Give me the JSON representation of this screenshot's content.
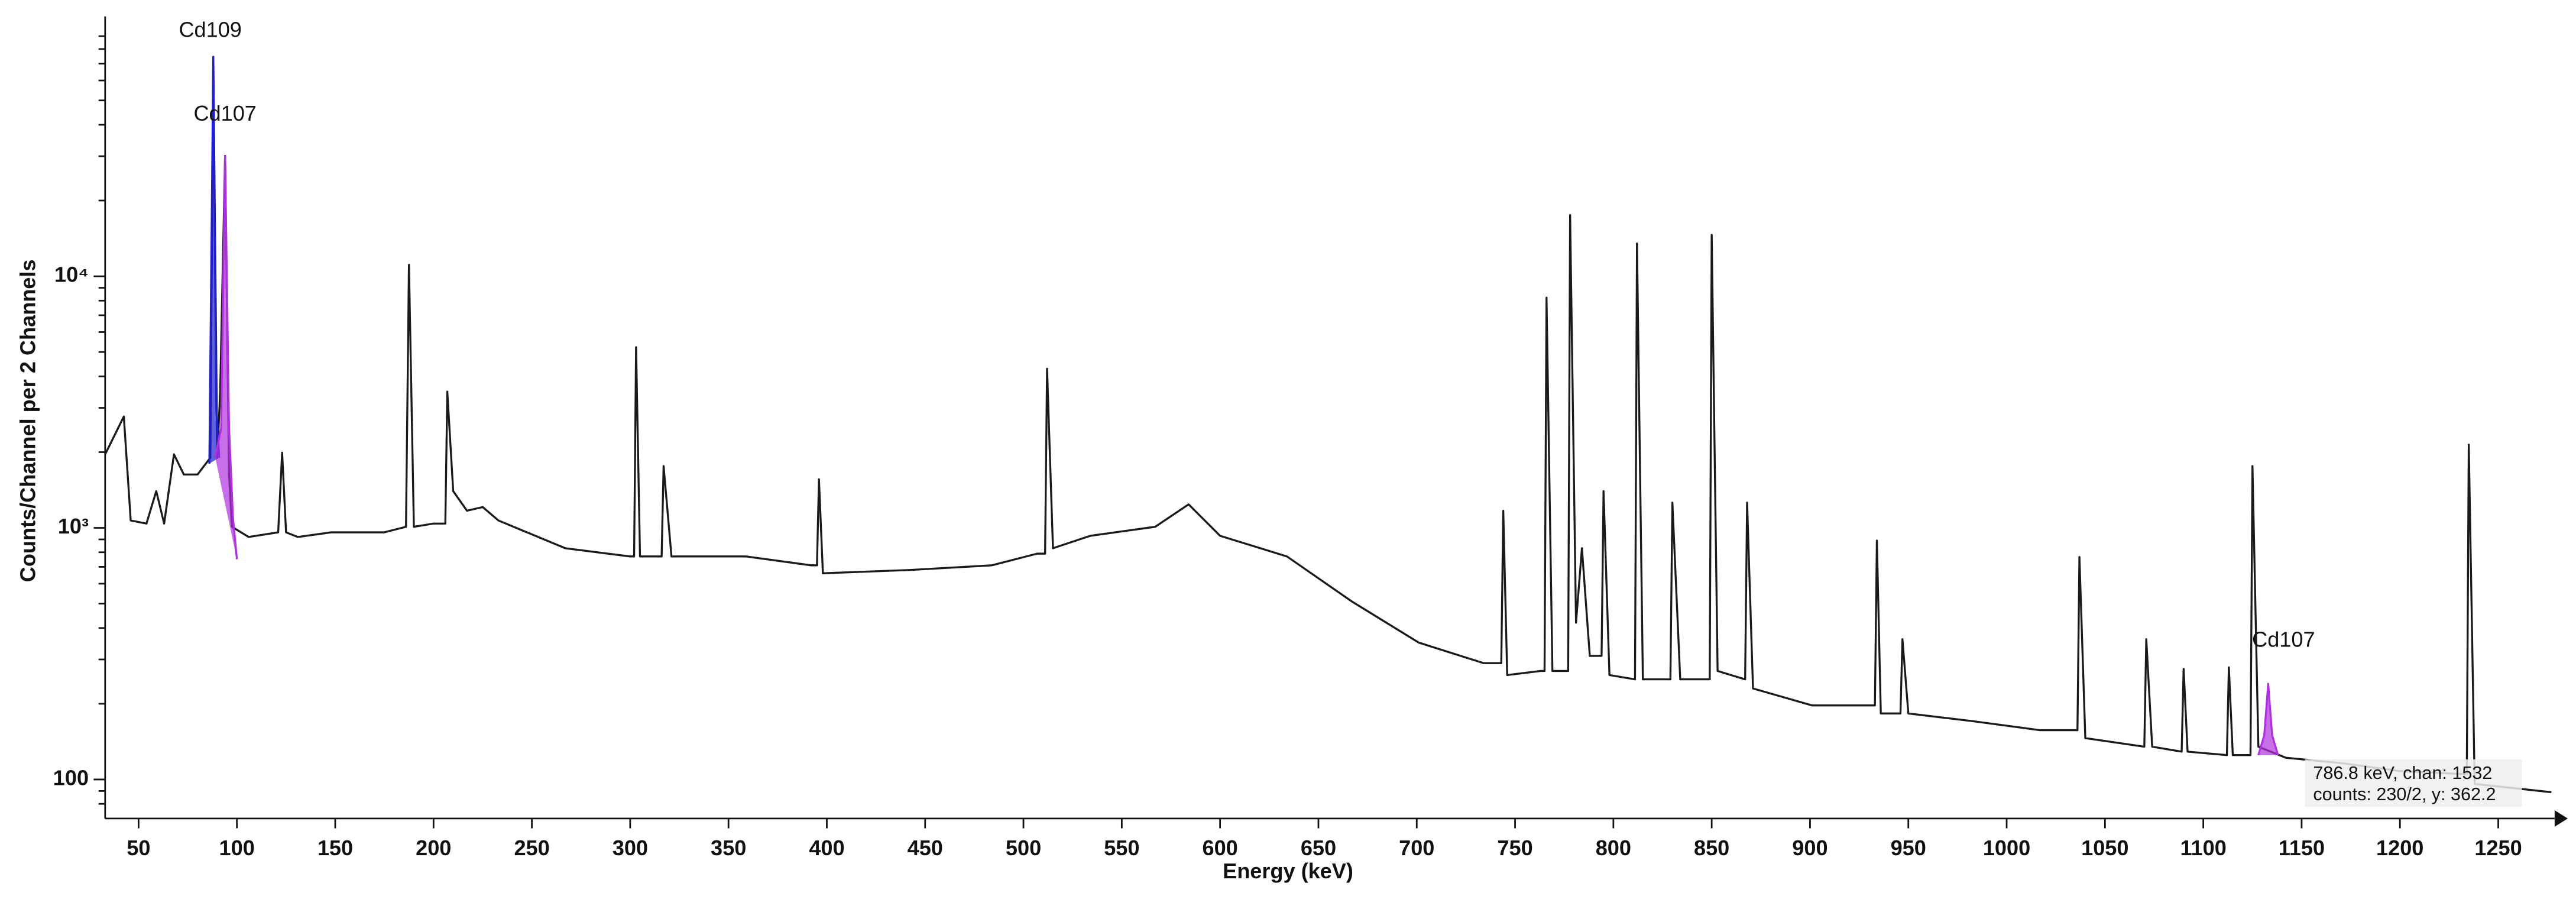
{
  "chart_data": {
    "type": "line",
    "xlabel": "Energy (keV)",
    "ylabel": "Counts/Channel per 2 Channels",
    "log_y": true,
    "xlim": [
      33,
      1277
    ],
    "ylim": [
      70,
      100000
    ],
    "xticks": [
      50,
      100,
      150,
      200,
      250,
      300,
      350,
      400,
      450,
      500,
      550,
      600,
      650,
      700,
      750,
      800,
      850,
      900,
      950,
      1000,
      1050,
      1100,
      1150,
      1200,
      1250
    ],
    "yticks": [
      {
        "value": 100,
        "label": "100"
      },
      {
        "value": 1000,
        "label": "10³"
      },
      {
        "value": 10000,
        "label": "10⁴"
      }
    ],
    "yminorticks": [
      80,
      90,
      200,
      300,
      400,
      500,
      600,
      700,
      800,
      900,
      2000,
      3000,
      4000,
      5000,
      6000,
      7000,
      8000,
      9000,
      20000,
      30000,
      40000,
      50000,
      60000,
      70000,
      80000,
      90000
    ],
    "annotations": [
      "Cd109",
      "Cd107",
      "Cd107"
    ],
    "tooltip": [
      "786.8 keV, chan: 1532",
      "counts: 230/2, y: 362.2"
    ],
    "series": [
      {
        "color": "#1a1a1a",
        "fill": false,
        "x": [
          33,
          42.5,
          46,
          54,
          59,
          63,
          68,
          73,
          80,
          86.5,
          88,
          90,
          91.5,
          94,
          96,
          97.5,
          106,
          121,
          123,
          125,
          131,
          148,
          175,
          186,
          187.5,
          190,
          200,
          206,
          207,
          210,
          217,
          225,
          233,
          267,
          300,
          302,
          303,
          305,
          316,
          317,
          321,
          359,
          392,
          395,
          396,
          398,
          442,
          484,
          507,
          511,
          512,
          515,
          534,
          567,
          584,
          600,
          634,
          667,
          701,
          734,
          743,
          744,
          746,
          763,
          765,
          766,
          769,
          777,
          778,
          781,
          784,
          788,
          794,
          795,
          798,
          811,
          812,
          815,
          829,
          830,
          834,
          849,
          850,
          853,
          867,
          868,
          871,
          901,
          933,
          934,
          936,
          946,
          947,
          950,
          984,
          1017,
          1036,
          1037,
          1040,
          1070,
          1071,
          1074,
          1089,
          1090,
          1092,
          1112,
          1113,
          1115,
          1124,
          1125,
          1128,
          1142,
          1171,
          1200,
          1233,
          1234,
          1235,
          1238,
          1277
        ],
        "values": [
          1960,
          2770,
          1070,
          1040,
          1400,
          1040,
          1960,
          1630,
          1630,
          1900,
          74500,
          1900,
          3480,
          30100,
          1630,
          1010,
          920,
          960,
          1990,
          960,
          920,
          960,
          960,
          1010,
          11100,
          1010,
          1040,
          1040,
          3480,
          1400,
          1170,
          1210,
          1070,
          830,
          770,
          770,
          5220,
          770,
          770,
          1760,
          770,
          770,
          710,
          710,
          1560,
          660,
          680,
          710,
          790,
          790,
          4290,
          830,
          930,
          1010,
          1240,
          930,
          770,
          510,
          350,
          290,
          290,
          1170,
          260,
          270,
          270,
          8220,
          270,
          270,
          17500,
          420,
          830,
          310,
          310,
          1400,
          260,
          250,
          13500,
          250,
          250,
          1260,
          250,
          250,
          14600,
          270,
          250,
          1260,
          230,
          197,
          197,
          890,
          183,
          183,
          361,
          183,
          170,
          157,
          157,
          766,
          146,
          135,
          361,
          135,
          129,
          275,
          129,
          125,
          279,
          125,
          125,
          1760,
          135,
          122,
          116,
          108,
          105,
          105,
          2140,
          96,
          89
        ]
      },
      {
        "color": "#1f1fd0",
        "fill": true,
        "x": [
          86,
          88,
          89.5,
          91
        ],
        "values": [
          1800,
          74500,
          3000,
          1900
        ]
      },
      {
        "color": "#b030e0",
        "fill": true,
        "x": [
          89,
          92,
          94,
          96,
          98,
          100
        ],
        "values": [
          1900,
          2500,
          30000,
          2500,
          1100,
          750
        ]
      },
      {
        "color": "#b030e0",
        "fill": true,
        "x": [
          1128,
          1131,
          1133,
          1135,
          1138
        ],
        "values": [
          125,
          150,
          240,
          150,
          125
        ]
      }
    ]
  }
}
